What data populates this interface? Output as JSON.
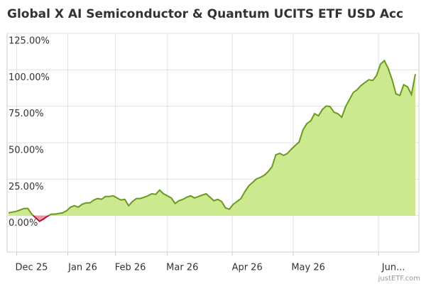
{
  "chart_data": {
    "type": "area",
    "title": "Global X AI Semiconductor & Quantum UCITS ETF USD Acc",
    "series": [
      {
        "name": "Global X AI Semiconductor & Quantum UCITS ETF USD Acc",
        "color": "#6a9a1f",
        "fill": "#cce98f",
        "negative_color": "#b0102a",
        "negative_fill": "#e99aa6",
        "values": [
          1.9,
          2.4,
          2.9,
          3.9,
          4.9,
          4.9,
          1.0,
          -1.5,
          -3.9,
          -2.4,
          -0.5,
          1.0,
          1.0,
          1.5,
          1.9,
          3.4,
          5.8,
          6.8,
          5.8,
          7.8,
          8.7,
          8.7,
          10.7,
          11.7,
          11.2,
          13.1,
          13.1,
          13.6,
          12.1,
          10.7,
          11.2,
          6.8,
          9.7,
          11.7,
          11.7,
          12.6,
          13.6,
          15.0,
          14.6,
          17.5,
          15.0,
          13.6,
          12.1,
          8.3,
          10.2,
          11.2,
          12.6,
          13.6,
          12.1,
          13.1,
          14.1,
          15.0,
          12.6,
          10.2,
          11.2,
          9.7,
          5.3,
          4.4,
          7.8,
          9.7,
          11.7,
          16.5,
          20.4,
          22.8,
          25.2,
          26.2,
          27.7,
          30.1,
          33.5,
          41.7,
          42.7,
          41.3,
          42.7,
          45.6,
          48.1,
          50.5,
          58.7,
          63.1,
          65.0,
          69.9,
          68.4,
          72.8,
          75.2,
          74.8,
          70.9,
          69.9,
          67.5,
          74.8,
          79.6,
          84.5,
          86.4,
          89.3,
          91.3,
          93.2,
          92.7,
          96.1,
          103.9,
          106.3,
          101.0,
          93.2,
          83.5,
          82.5,
          89.8,
          88.3,
          83.0,
          97.1
        ]
      }
    ],
    "xlim": [
      0,
      105
    ],
    "xticks": [
      {
        "value": 2.1,
        "label": "Dec 25"
      },
      {
        "value": 15.3,
        "label": "Jan 26"
      },
      {
        "value": 27.6,
        "label": "Feb 26"
      },
      {
        "value": 41,
        "label": "Mar 26"
      },
      {
        "value": 57.75,
        "label": "Apr 26"
      },
      {
        "value": 73.5,
        "label": "May 26"
      },
      {
        "value": 95.5,
        "label": "Jun..."
      }
    ],
    "ylim": [
      -25,
      125
    ],
    "yticks": [
      {
        "value": 0,
        "label": "0.00%"
      },
      {
        "value": 25,
        "label": "25.00%"
      },
      {
        "value": 50,
        "label": "50.00%"
      },
      {
        "value": 75,
        "label": "75.00%"
      },
      {
        "value": 100,
        "label": "100.00%"
      },
      {
        "value": 125,
        "label": "125.00%"
      }
    ],
    "grid": true,
    "credit": "justETF.com"
  }
}
